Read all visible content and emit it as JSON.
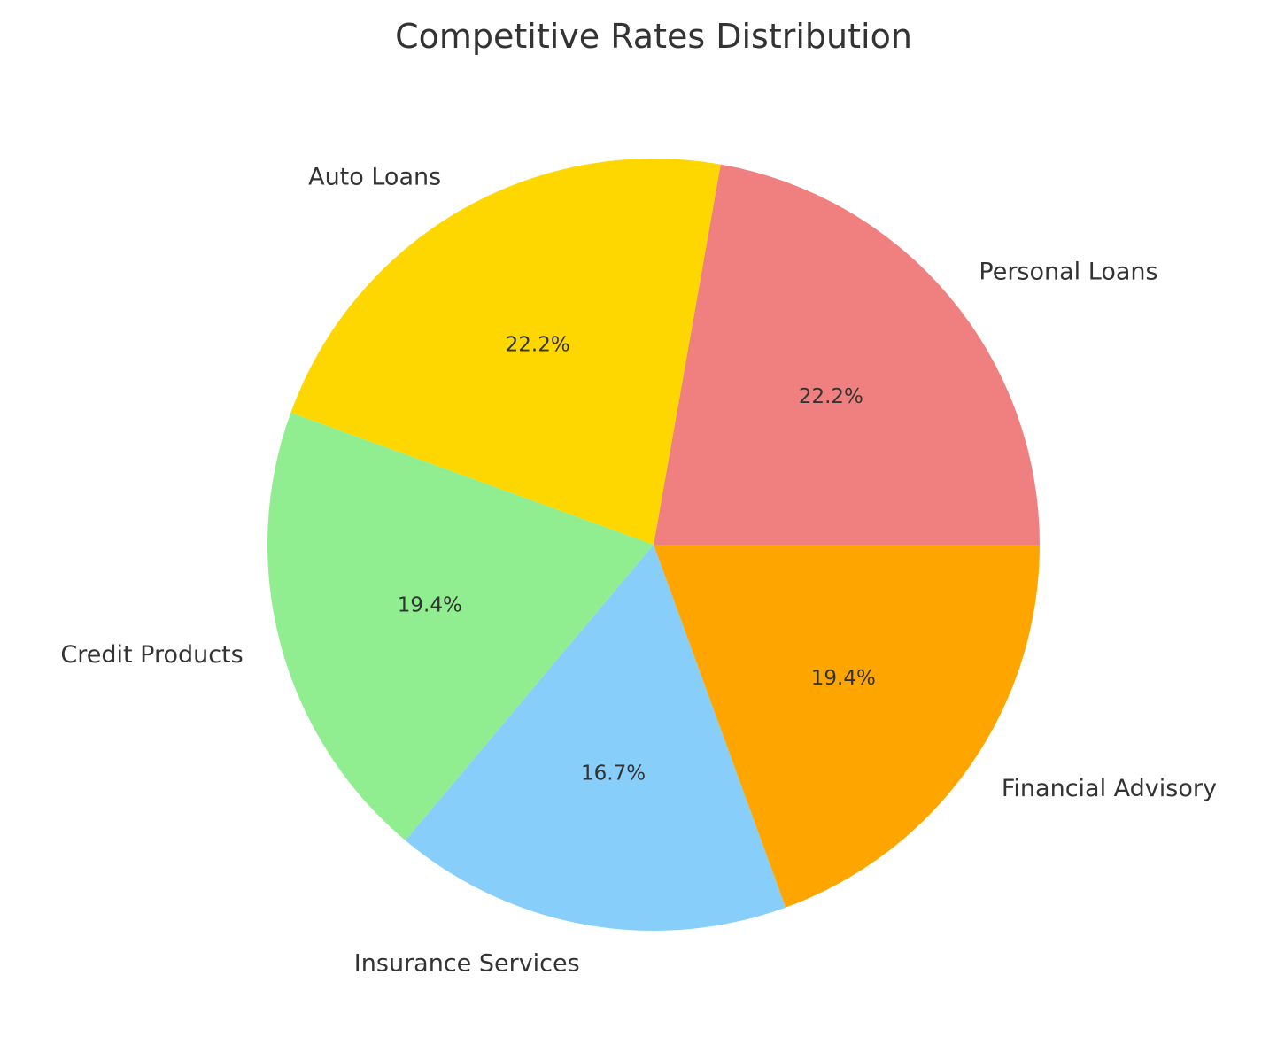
{
  "chart_data": {
    "type": "pie",
    "title": "Competitive Rates Distribution",
    "categories": [
      "Personal Loans",
      "Auto Loans",
      "Credit Products",
      "Insurance Services",
      "Financial Advisory"
    ],
    "values": [
      8,
      8,
      7,
      6,
      7
    ],
    "percent_labels": [
      "22.2%",
      "22.2%",
      "19.4%",
      "16.7%",
      "19.4%"
    ],
    "colors": [
      "#F08080",
      "#FFD700",
      "#90EE90",
      "#87CEFA",
      "#FFA500"
    ],
    "start_angle": 0,
    "direction": "counterclockwise",
    "legend": "none"
  }
}
